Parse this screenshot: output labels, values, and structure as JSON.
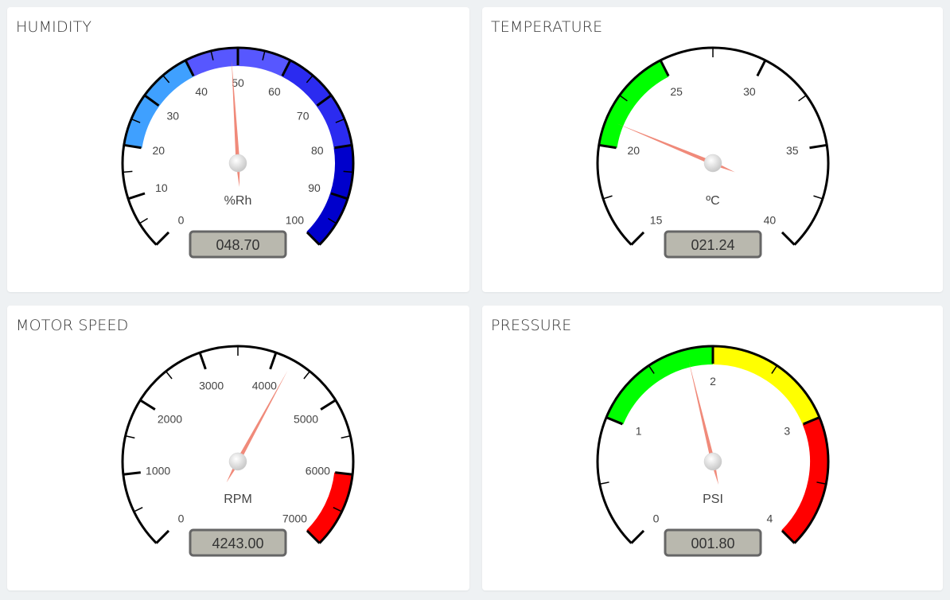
{
  "gauges": [
    {
      "id": "humidity",
      "title": "HUMIDITY",
      "unit": "%Rh",
      "display_value": "048.70",
      "value": 48.7,
      "min": 0,
      "max": 100,
      "major_ticks": [
        0,
        10,
        20,
        30,
        40,
        50,
        60,
        70,
        80,
        90,
        100
      ],
      "minor_per_major": 1,
      "bands": [
        {
          "from": 20,
          "to": 40,
          "color": "#3fa0ff"
        },
        {
          "from": 40,
          "to": 60,
          "color": "#5757ff"
        },
        {
          "from": 60,
          "to": 80,
          "color": "#2b2bf0"
        },
        {
          "from": 80,
          "to": 100,
          "color": "#0000cc"
        }
      ]
    },
    {
      "id": "temperature",
      "title": "TEMPERATURE",
      "unit": "ºC",
      "display_value": "021.24",
      "value": 21.24,
      "min": 15,
      "max": 40,
      "major_ticks": [
        15,
        20,
        25,
        30,
        35,
        40
      ],
      "minor_per_major": 1,
      "bands": [
        {
          "from": 20,
          "to": 25,
          "color": "#00ff00"
        }
      ]
    },
    {
      "id": "motor-speed",
      "title": "MOTOR SPEED",
      "unit": "RPM",
      "display_value": "4243.00",
      "value": 4243,
      "min": 0,
      "max": 7000,
      "major_ticks": [
        0,
        1000,
        2000,
        3000,
        4000,
        5000,
        6000,
        7000
      ],
      "minor_per_major": 1,
      "bands": [
        {
          "from": 6000,
          "to": 7000,
          "color": "#ff0000"
        }
      ]
    },
    {
      "id": "pressure",
      "title": "PRESSURE",
      "unit": "PSI",
      "display_value": "001.80",
      "value": 1.8,
      "min": 0,
      "max": 4,
      "major_ticks": [
        0,
        1,
        2,
        3,
        4
      ],
      "minor_per_major": 1,
      "bands": [
        {
          "from": 1,
          "to": 2,
          "color": "#00ff00"
        },
        {
          "from": 2,
          "to": 3,
          "color": "#ffff00"
        },
        {
          "from": 3,
          "to": 4,
          "color": "#ff0000"
        }
      ]
    }
  ],
  "colors": {
    "needle": "#f08a7a",
    "display_bg": "#b9b8ae",
    "display_border": "#666666"
  }
}
